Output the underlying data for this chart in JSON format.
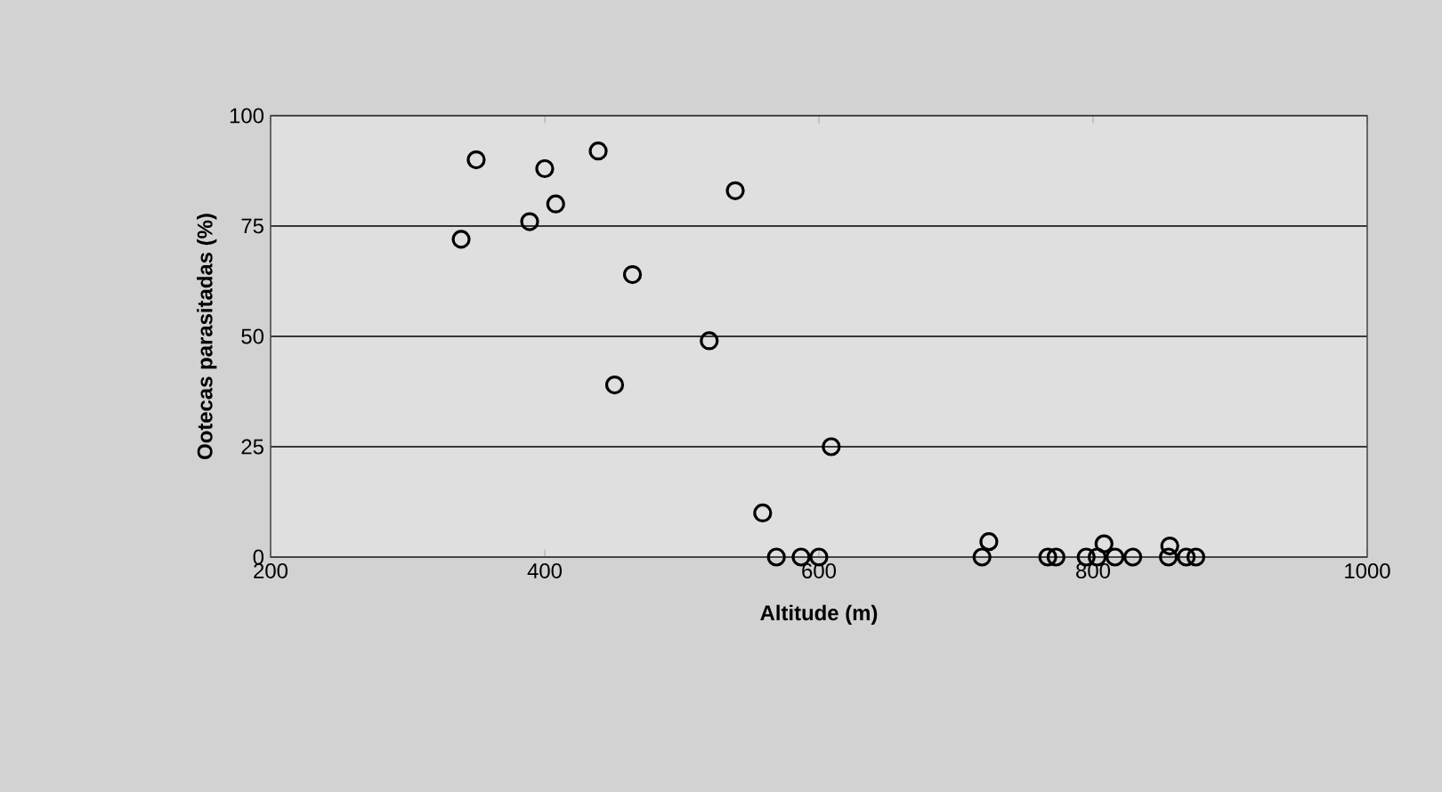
{
  "chart_data": {
    "type": "scatter",
    "xlabel": "Altitude (m)",
    "ylabel": "Ootecas parasitadas (%)",
    "x": [
      339,
      350,
      389,
      400,
      408,
      439,
      451,
      464,
      520,
      539,
      559,
      569,
      587,
      600,
      609,
      719,
      724,
      767,
      773,
      795,
      803,
      808,
      816,
      829,
      855,
      856,
      868,
      875
    ],
    "values": [
      72,
      90,
      76,
      88,
      80,
      92,
      39,
      64,
      49,
      83,
      10,
      0,
      0,
      0,
      25,
      0,
      3.5,
      0,
      0,
      0,
      0,
      3,
      0,
      0,
      0,
      2.5,
      0,
      0
    ],
    "color": "#000000",
    "marker": "circle",
    "xlim": [
      200,
      1000
    ],
    "ylim": [
      0,
      100
    ],
    "xticks": [
      200,
      400,
      600,
      800,
      1000
    ],
    "yticks": [
      0,
      25,
      50,
      75,
      100
    ],
    "grid": "y"
  }
}
